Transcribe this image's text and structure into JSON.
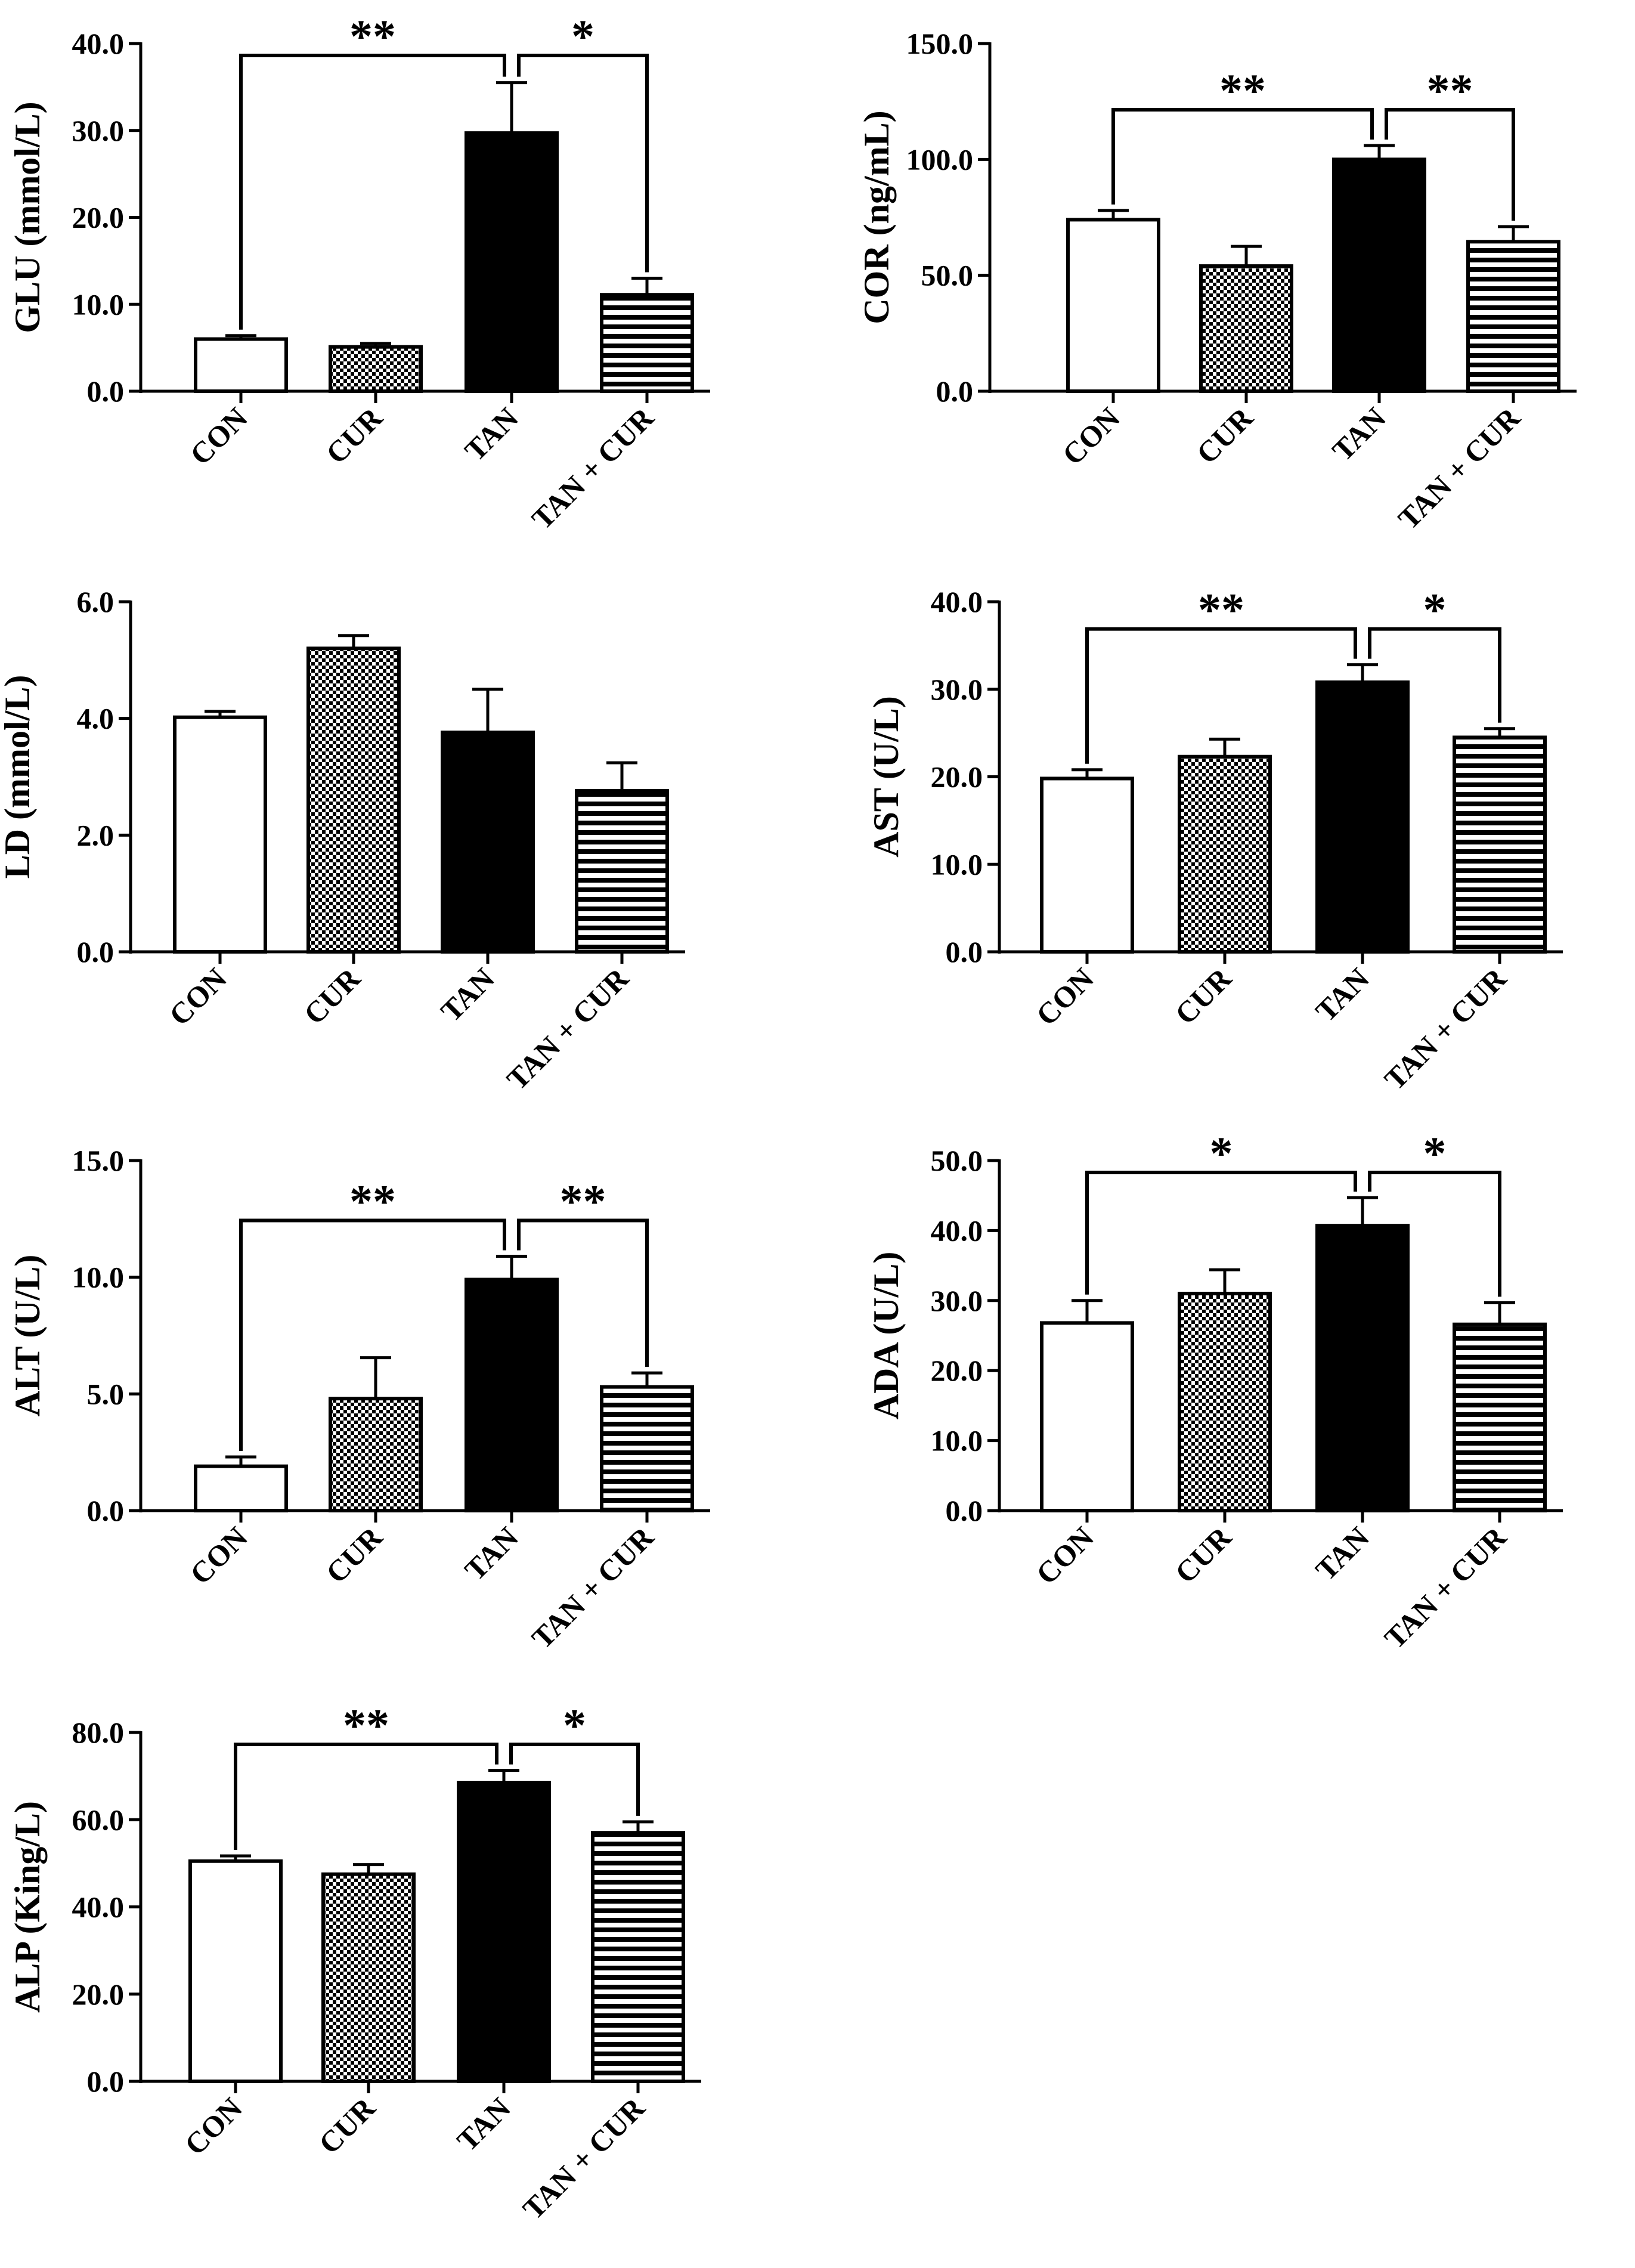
{
  "figure": {
    "group_styles": {
      "CON": "open",
      "CUR": "checker",
      "TAN": "solid",
      "TAN + CUR": "hstripe"
    },
    "colors": {
      "ink": "#000000",
      "paper": "#ffffff"
    }
  },
  "chart_data": [
    {
      "id": "glu",
      "type": "bar",
      "ylabel": "GLU (mmol/L)",
      "categories": [
        "CON",
        "CUR",
        "TAN",
        "TAN + CUR"
      ],
      "values": [
        6.0,
        5.1,
        29.7,
        11.1
      ],
      "errors": [
        0.4,
        0.4,
        5.8,
        1.9
      ],
      "ylim": [
        0,
        40
      ],
      "yticks": [
        "0.0",
        "10.0",
        "20.0",
        "30.0",
        "40.0"
      ],
      "significance": [
        {
          "from": 0,
          "to": 2,
          "label": "**"
        },
        {
          "from": 2,
          "to": 3,
          "label": "*"
        }
      ]
    },
    {
      "id": "cor",
      "type": "bar",
      "ylabel": "COR (ng/mL)",
      "categories": [
        "CON",
        "CUR",
        "TAN",
        "TAN + CUR"
      ],
      "values": [
        74,
        54,
        100,
        64.5
      ],
      "errors": [
        4,
        8.5,
        6,
        6.5
      ],
      "ylim": [
        0,
        150
      ],
      "yticks": [
        "0.0",
        "50.0",
        "100.0",
        "150.0"
      ],
      "significance": [
        {
          "from": 0,
          "to": 2,
          "label": "**"
        },
        {
          "from": 2,
          "to": 3,
          "label": "**"
        }
      ]
    },
    {
      "id": "ld",
      "type": "bar",
      "ylabel": "LD (mmol/L)",
      "categories": [
        "CON",
        "CUR",
        "TAN",
        "TAN + CUR"
      ],
      "values": [
        4.02,
        5.2,
        3.76,
        2.76
      ],
      "errors": [
        0.1,
        0.22,
        0.74,
        0.48
      ],
      "ylim": [
        0,
        6
      ],
      "yticks": [
        "0.0",
        "2.0",
        "4.0",
        "6.0"
      ],
      "significance": []
    },
    {
      "id": "ast",
      "type": "bar",
      "ylabel": "AST (U/L)",
      "categories": [
        "CON",
        "CUR",
        "TAN",
        "TAN + CUR"
      ],
      "values": [
        19.8,
        22.3,
        30.8,
        24.5
      ],
      "errors": [
        1.0,
        2.0,
        2.0,
        1.0
      ],
      "ylim": [
        0,
        40
      ],
      "yticks": [
        "0.0",
        "10.0",
        "20.0",
        "30.0",
        "40.0"
      ],
      "significance": [
        {
          "from": 0,
          "to": 2,
          "label": "**"
        },
        {
          "from": 2,
          "to": 3,
          "label": "*"
        }
      ]
    },
    {
      "id": "alt",
      "type": "bar",
      "ylabel": "ALT (U/L)",
      "categories": [
        "CON",
        "CUR",
        "TAN",
        "TAN + CUR"
      ],
      "values": [
        1.9,
        4.8,
        9.9,
        5.3
      ],
      "errors": [
        0.4,
        1.75,
        1.0,
        0.6
      ],
      "ylim": [
        0,
        15
      ],
      "yticks": [
        "0.0",
        "5.0",
        "10.0",
        "15.0"
      ],
      "significance": [
        {
          "from": 0,
          "to": 2,
          "label": "**"
        },
        {
          "from": 2,
          "to": 3,
          "label": "**"
        }
      ]
    },
    {
      "id": "ada",
      "type": "bar",
      "ylabel": "ADA (U/L)",
      "categories": [
        "CON",
        "CUR",
        "TAN",
        "TAN + CUR"
      ],
      "values": [
        26.8,
        31.0,
        40.7,
        26.6
      ],
      "errors": [
        3.2,
        3.4,
        4.0,
        3.1
      ],
      "ylim": [
        0,
        50
      ],
      "yticks": [
        "0.0",
        "10.0",
        "20.0",
        "30.0",
        "40.0",
        "50.0"
      ],
      "significance": [
        {
          "from": 0,
          "to": 2,
          "label": "*"
        },
        {
          "from": 2,
          "to": 3,
          "label": "*"
        }
      ]
    },
    {
      "id": "alp",
      "type": "bar",
      "ylabel": "ALP (King/L)",
      "categories": [
        "CON",
        "CUR",
        "TAN",
        "TAN + CUR"
      ],
      "values": [
        50.5,
        47.5,
        68.5,
        57.0
      ],
      "errors": [
        1.2,
        2.2,
        2.8,
        2.5
      ],
      "ylim": [
        0,
        80
      ],
      "yticks": [
        "0.0",
        "20.0",
        "40.0",
        "60.0",
        "80.0"
      ],
      "significance": [
        {
          "from": 0,
          "to": 2,
          "label": "**"
        },
        {
          "from": 2,
          "to": 3,
          "label": "*"
        }
      ]
    }
  ]
}
